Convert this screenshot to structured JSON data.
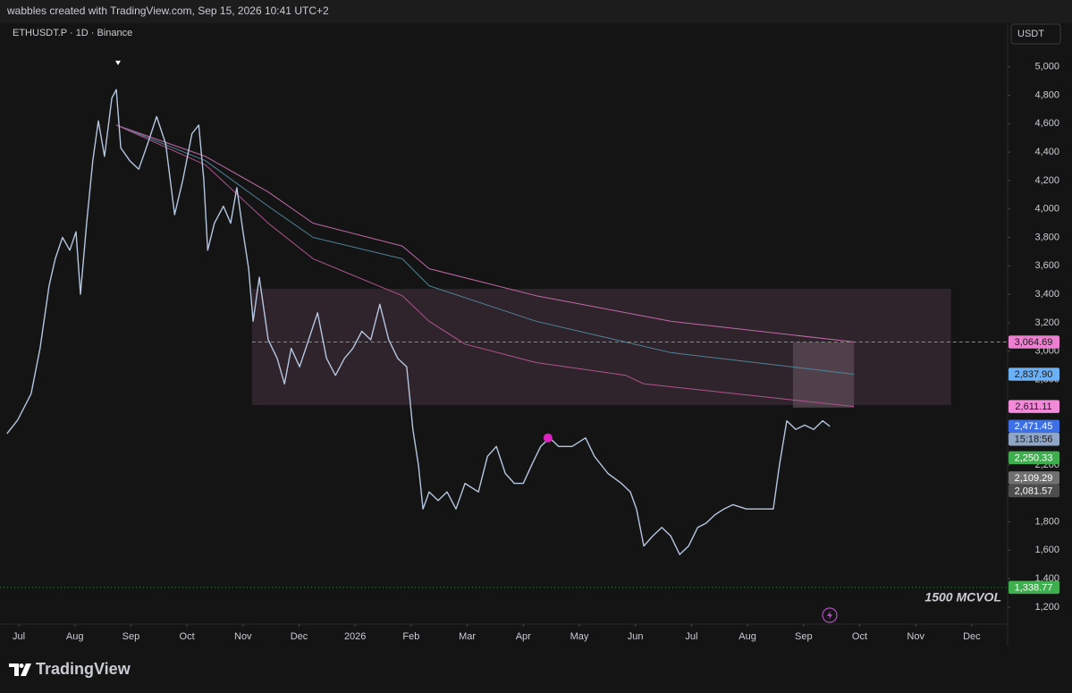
{
  "header": {
    "title": "wabbles created with TradingView.com, Sep 15, 2026 10:41 UTC+2"
  },
  "chart_data": {
    "type": "line",
    "symbol": "ETHUSDT.P · 1D · Binance",
    "currency": "USDT",
    "annotation": "1500 MCVOL",
    "xlim": [
      -0.335,
      17.64
    ],
    "xticks": [
      {
        "value": 0,
        "label": "Jul"
      },
      {
        "value": 1,
        "label": "Aug"
      },
      {
        "value": 2,
        "label": "Sep"
      },
      {
        "value": 3,
        "label": "Oct"
      },
      {
        "value": 4,
        "label": "Nov"
      },
      {
        "value": 5,
        "label": "Dec"
      },
      {
        "value": 6,
        "label": "2026"
      },
      {
        "value": 7,
        "label": "Feb"
      },
      {
        "value": 8,
        "label": "Mar"
      },
      {
        "value": 9,
        "label": "Apr"
      },
      {
        "value": 10,
        "label": "May"
      },
      {
        "value": 11,
        "label": "Jun"
      },
      {
        "value": 12,
        "label": "Jul"
      },
      {
        "value": 13,
        "label": "Aug"
      },
      {
        "value": 14,
        "label": "Sep"
      },
      {
        "value": 15,
        "label": "Oct"
      },
      {
        "value": 16,
        "label": "Nov"
      },
      {
        "value": 17,
        "label": "Dec"
      }
    ],
    "ylim": [
      1080,
      5294
    ],
    "yticks": [
      {
        "value": 1200,
        "label": "1,200"
      },
      {
        "value": 1400,
        "label": "1,400"
      },
      {
        "value": 1600,
        "label": "1,600"
      },
      {
        "value": 1800,
        "label": "1,800"
      },
      {
        "value": 2000,
        "label": "2,000"
      },
      {
        "value": 2200,
        "label": "2,200"
      },
      {
        "value": 2400,
        "label": "2,400"
      },
      {
        "value": 2600,
        "label": "2,600"
      },
      {
        "value": 2800,
        "label": "2,800"
      },
      {
        "value": 3000,
        "label": "3,000"
      },
      {
        "value": 3200,
        "label": "3,200"
      },
      {
        "value": 3400,
        "label": "3,400"
      },
      {
        "value": 3600,
        "label": "3,600"
      },
      {
        "value": 3800,
        "label": "3,800"
      },
      {
        "value": 4000,
        "label": "4,000"
      },
      {
        "value": 4200,
        "label": "4,200"
      },
      {
        "value": 4400,
        "label": "4,400"
      },
      {
        "value": 4600,
        "label": "4,600"
      },
      {
        "value": 4800,
        "label": "4,800"
      },
      {
        "value": 5000,
        "label": "5,000"
      }
    ],
    "series": [
      {
        "color": "#b4c6e0",
        "x": [
          -0.21,
          -0.02,
          0.22,
          0.38,
          0.54,
          0.65,
          0.78,
          0.91,
          1.02,
          1.1,
          1.21,
          1.32,
          1.42,
          1.53,
          1.66,
          1.74,
          1.82,
          1.98,
          2.14,
          2.3,
          2.46,
          2.62,
          2.78,
          2.93,
          3.09,
          3.21,
          3.3,
          3.37,
          3.49,
          3.65,
          3.78,
          3.89,
          4.0,
          4.1,
          4.18,
          4.29,
          4.45,
          4.61,
          4.74,
          4.86,
          5.01,
          5.17,
          5.33,
          5.49,
          5.65,
          5.81,
          5.96,
          6.12,
          6.28,
          6.44,
          6.6,
          6.76,
          6.92,
          7.03,
          7.13,
          7.21,
          7.32,
          7.48,
          7.64,
          7.8,
          7.96,
          8.2,
          8.36,
          8.52,
          8.68,
          8.84,
          9.0,
          9.15,
          9.31,
          9.47,
          9.63,
          9.87,
          10.11,
          10.27,
          10.51,
          10.75,
          10.91,
          11.02,
          11.15,
          11.31,
          11.47,
          11.63,
          11.79,
          11.95,
          12.11,
          12.26,
          12.42,
          12.58,
          12.74,
          12.98,
          13.22,
          13.46,
          13.57,
          13.7,
          13.86,
          14.02,
          14.18,
          14.34,
          14.47
        ],
        "values": [
          2420,
          2515,
          2700,
          3020,
          3460,
          3650,
          3800,
          3710,
          3840,
          3400,
          3900,
          4340,
          4620,
          4370,
          4780,
          4840,
          4430,
          4340,
          4280,
          4460,
          4650,
          4460,
          3960,
          4210,
          4530,
          4590,
          4210,
          3710,
          3900,
          4020,
          3900,
          4150,
          3840,
          3580,
          3210,
          3520,
          3080,
          2950,
          2770,
          3020,
          2890,
          3080,
          3270,
          2950,
          2830,
          2950,
          3020,
          3140,
          3080,
          3330,
          3080,
          2950,
          2890,
          2450,
          2200,
          1890,
          2010,
          1950,
          2010,
          1890,
          2070,
          2010,
          2260,
          2330,
          2140,
          2070,
          2070,
          2200,
          2330,
          2390,
          2330,
          2330,
          2390,
          2260,
          2140,
          2070,
          2010,
          1890,
          1630,
          1700,
          1760,
          1700,
          1570,
          1630,
          1760,
          1790,
          1850,
          1890,
          1920,
          1890,
          1890,
          1890,
          2200,
          2510,
          2450,
          2480,
          2450,
          2510,
          2471.45
        ]
      },
      {
        "color": "#c06aa8",
        "x": [
          1.74,
          3.33,
          4.45,
          5.25,
          6.84,
          7.32,
          9.23,
          11.63,
          14.9
        ],
        "values": [
          4590,
          4370,
          4120,
          3900,
          3740,
          3580,
          3390,
          3210,
          3064.69
        ]
      },
      {
        "color": "#4f8296",
        "x": [
          1.74,
          3.33,
          4.45,
          5.25,
          6.84,
          7.32,
          9.23,
          11.63,
          14.9
        ],
        "values": [
          4590,
          4340,
          4020,
          3800,
          3650,
          3460,
          3210,
          2990,
          2837.9
        ]
      },
      {
        "color": "#b0548f",
        "x": [
          1.74,
          3.33,
          4.45,
          5.25,
          6.84,
          7.32,
          7.96,
          9.23,
          10.83,
          11.15,
          14.9
        ],
        "values": [
          4590,
          4310,
          3900,
          3650,
          3390,
          3210,
          3050,
          2920,
          2830,
          2770,
          2611.11
        ]
      }
    ],
    "zones": [
      {
        "x": [
          4.16,
          16.63
        ],
        "y": [
          2621,
          3439
        ],
        "color": "#3a2a34"
      },
      {
        "x": [
          13.81,
          14.9
        ],
        "y": [
          2603,
          3062
        ],
        "color": "#5a4a56"
      }
    ],
    "levels": [
      {
        "value": 3064.69,
        "from": 4.16,
        "style": "dashed",
        "color": "#8a8a8a"
      },
      {
        "value": 1338.77,
        "from": -0.335,
        "style": "dotted",
        "color": "#2f8a3a"
      }
    ],
    "markers": [
      {
        "x": 1.77,
        "y": 5024,
        "shape": "down-triangle",
        "color": "#ffffff"
      },
      {
        "x": 9.44,
        "y": 2390,
        "shape": "circle",
        "color": "#e020c0"
      }
    ],
    "price_tags": [
      {
        "value": 3064.69,
        "label": "3,064.69",
        "color": "#ec7fd0",
        "text_color": "#1a1a1a"
      },
      {
        "value": 2837.9,
        "label": "2,837.90",
        "color": "#6cb0f5",
        "text_color": "#1a1a1a"
      },
      {
        "value": 2611.11,
        "label": "2,611.11",
        "color": "#f28ad9",
        "text_color": "#1a1a1a"
      },
      {
        "value": 2471.45,
        "label": "2,471.45",
        "color": "#3d6fe6",
        "text_color": "#ffffff",
        "countdown": "15:18:56"
      },
      {
        "value": 2250.33,
        "label": "2,250.33",
        "color": "#3fae4e",
        "text_color": "#ffffff"
      },
      {
        "value": 2109.29,
        "label": "2,109.29",
        "color": "#707070",
        "text_color": "#ffffff"
      },
      {
        "value": 2081.57,
        "label": "2,081.57",
        "color": "#4d4d4d",
        "text_color": "#ffffff"
      },
      {
        "value": 1338.77,
        "label": "1,338.77",
        "color": "#3fae4e",
        "text_color": "#ffffff"
      }
    ]
  },
  "footer": {
    "brand": "TradingView"
  }
}
